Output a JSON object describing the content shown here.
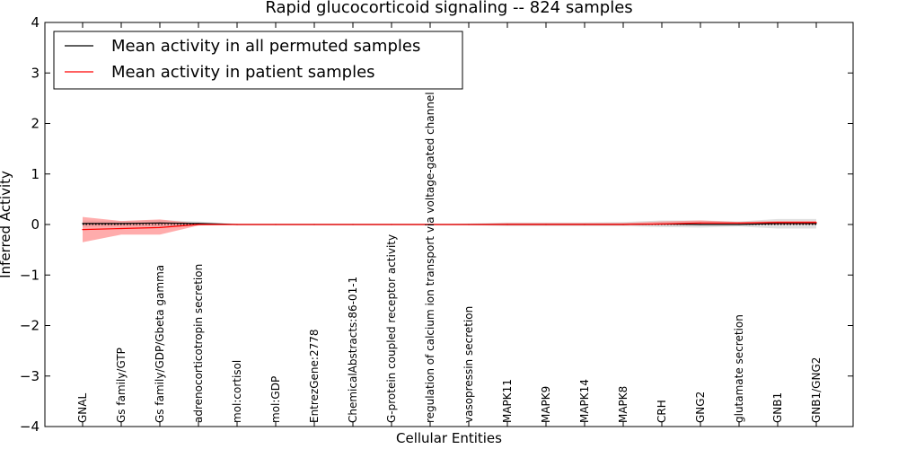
{
  "chart_data": {
    "type": "line",
    "title": "Rapid glucocorticoid signaling -- 824 samples",
    "xlabel": "Cellular Entities",
    "ylabel": "Inferred Activity",
    "ylim": [
      -4,
      4
    ],
    "yticks": [
      -4,
      -3,
      -2,
      -1,
      0,
      1,
      2,
      3,
      4
    ],
    "grid": false,
    "legend_position": "top-left",
    "categories": [
      "GNAL",
      "Gs family/GTP",
      "Gs family/GDP/Gbeta gamma",
      "adrenocorticotropin secretion",
      "mol:cortisol",
      "mol:GDP",
      "EntrezGene:2778",
      "ChemicalAbstracts:86-01-1",
      "G-protein coupled receptor activity",
      "regulation of calcium ion transport via voltage-gated channel",
      "vasopressin secretion",
      "MAPK11",
      "MAPK9",
      "MAPK14",
      "MAPK8",
      "CRH",
      "GNG2",
      "glutamate secretion",
      "GNB1",
      "GNB1/GNG2"
    ],
    "series": [
      {
        "name": "Mean activity in all permuted samples",
        "color": "#000000",
        "values": [
          0.02,
          0.02,
          0.03,
          0.02,
          0.0,
          0.0,
          0.0,
          0.0,
          0.0,
          0.0,
          0.0,
          0.0,
          0.0,
          0.0,
          0.0,
          0.01,
          0.0,
          0.0,
          0.02,
          0.02
        ],
        "band_lower": [
          -0.05,
          -0.04,
          -0.04,
          -0.02,
          -0.01,
          0.0,
          0.0,
          0.0,
          0.0,
          0.0,
          -0.01,
          -0.03,
          -0.03,
          -0.03,
          -0.03,
          -0.05,
          -0.06,
          -0.04,
          -0.08,
          -0.08
        ],
        "band_upper": [
          0.08,
          0.07,
          0.09,
          0.06,
          0.01,
          0.0,
          0.0,
          0.0,
          0.0,
          0.0,
          0.02,
          0.04,
          0.04,
          0.04,
          0.05,
          0.08,
          0.08,
          0.06,
          0.11,
          0.11
        ],
        "band_color": "#d8d8d8"
      },
      {
        "name": "Mean activity in patient samples",
        "color": "#ff0000",
        "values": [
          -0.1,
          -0.08,
          -0.06,
          0.0,
          0.0,
          0.0,
          0.0,
          0.0,
          0.0,
          0.0,
          0.0,
          0.0,
          0.0,
          0.0,
          0.0,
          0.01,
          0.03,
          0.03,
          0.04,
          0.04
        ],
        "band_lower": [
          -0.35,
          -0.2,
          -0.2,
          -0.02,
          0.0,
          0.0,
          0.0,
          0.0,
          0.0,
          0.0,
          0.0,
          -0.01,
          -0.01,
          -0.01,
          -0.01,
          -0.01,
          0.0,
          0.01,
          0.0,
          0.0
        ],
        "band_upper": [
          0.15,
          0.07,
          0.1,
          0.02,
          0.0,
          0.0,
          0.0,
          0.0,
          0.0,
          0.0,
          0.01,
          0.03,
          0.03,
          0.03,
          0.03,
          0.06,
          0.08,
          0.05,
          0.07,
          0.07
        ],
        "band_color": "#ff8080"
      }
    ],
    "reference_line": {
      "y": 0,
      "style": "dotted",
      "color": "#000000"
    }
  }
}
